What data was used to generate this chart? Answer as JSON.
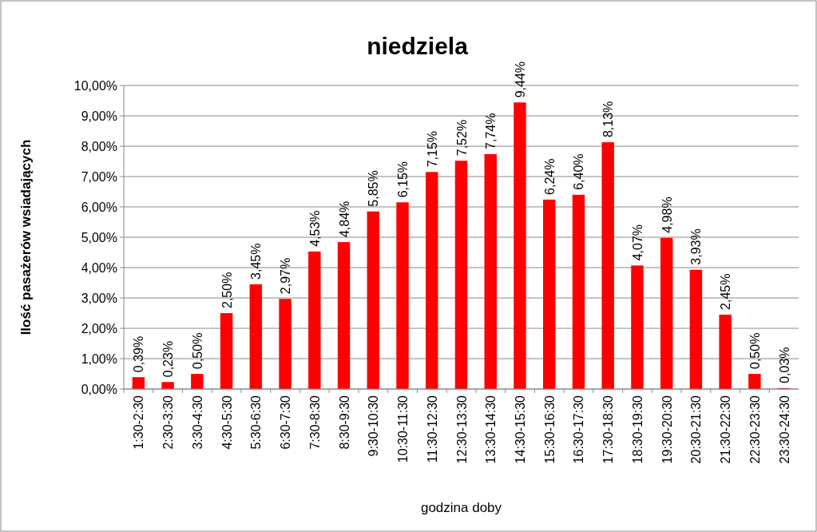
{
  "chart_data": {
    "type": "bar",
    "title": "niedziela",
    "xlabel": "godzina doby",
    "ylabel": "Ilość pasażerów wsiadających",
    "categories": [
      "1:30-2:30",
      "2:30-3:30",
      "3:30-4:30",
      "4:30-5:30",
      "5:30-6:30",
      "6:30-7:30",
      "7:30-8:30",
      "8:30-9:30",
      "9:30-10:30",
      "10:30-11:30",
      "11:30-12:30",
      "12:30-13:30",
      "13:30-14:30",
      "14:30-15:30",
      "15:30-16:30",
      "16:30-17:30",
      "17:30-18:30",
      "18:30-19:30",
      "19:30-20:30",
      "20:30-21:30",
      "21:30-22:30",
      "22:30-23:30",
      "23:30-24:30"
    ],
    "values": [
      0.39,
      0.23,
      0.5,
      2.5,
      3.45,
      2.97,
      4.53,
      4.84,
      5.85,
      6.15,
      7.15,
      7.52,
      7.74,
      9.44,
      6.24,
      6.4,
      8.13,
      4.07,
      4.98,
      3.93,
      2.45,
      0.5,
      0.03
    ],
    "value_labels": [
      "0,39%",
      "0,23%",
      "0,50%",
      "2,50%",
      "3,45%",
      "2,97%",
      "4,53%",
      "4,84%",
      "5,85%",
      "6,15%",
      "7,15%",
      "7,52%",
      "7,74%",
      "9,44%",
      "6,24%",
      "6,40%",
      "8,13%",
      "4,07%",
      "4,98%",
      "3,93%",
      "2,45%",
      "0,50%",
      "0,03%"
    ],
    "color": "#ff0000",
    "ylim": [
      0,
      10
    ],
    "yticks": [
      {
        "value": 0,
        "label": "0,00%"
      },
      {
        "value": 1,
        "label": "1,00%"
      },
      {
        "value": 2,
        "label": "2,00%"
      },
      {
        "value": 3,
        "label": "3,00%"
      },
      {
        "value": 4,
        "label": "4,00%"
      },
      {
        "value": 5,
        "label": "5,00%"
      },
      {
        "value": 6,
        "label": "6,00%"
      },
      {
        "value": 7,
        "label": "7,00%"
      },
      {
        "value": 8,
        "label": "8,00%"
      },
      {
        "value": 9,
        "label": "9,00%"
      },
      {
        "value": 10,
        "label": "10,00%"
      }
    ],
    "grid": "y"
  }
}
